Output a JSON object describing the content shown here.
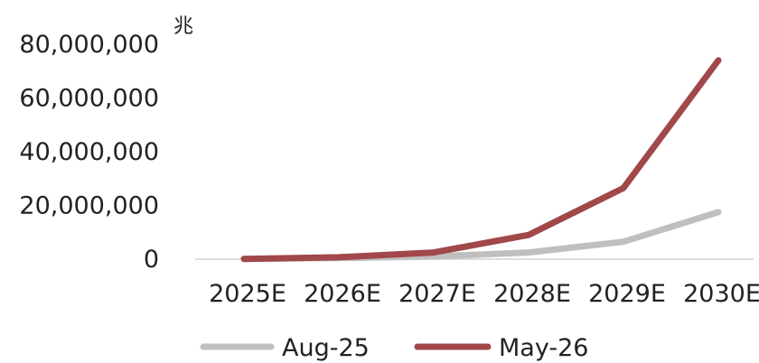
{
  "chart_data": {
    "type": "line",
    "categories": [
      "2025E",
      "2026E",
      "2027E",
      "2028E",
      "2029E",
      "2030E"
    ],
    "yunit": "兆",
    "ylim": [
      0,
      80000000
    ],
    "yticks": [
      0,
      20000000,
      40000000,
      60000000,
      80000000
    ],
    "ytick_labels": [
      "0",
      "20,000,000",
      "40,000,000",
      "60,000,000",
      "80,000,000"
    ],
    "grid": false,
    "legend_position": "bottom",
    "series": [
      {
        "name": "Aug-25",
        "color": "#BFBFBF",
        "values": [
          100000,
          400000,
          1000000,
          2500000,
          6500000,
          17500000
        ]
      },
      {
        "name": "May-26",
        "color": "#A0484A",
        "values": [
          100000,
          700000,
          2500000,
          9000000,
          26500000,
          74000000
        ]
      }
    ]
  }
}
